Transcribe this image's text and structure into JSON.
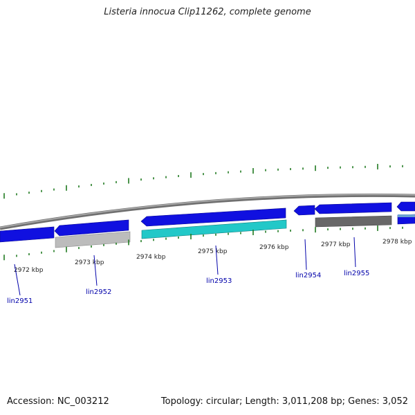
{
  "title": "Listeria innocua Clip11262, complete genome",
  "footer": {
    "accession": "Accession: NC_003212",
    "summary": "Topology: circular; Length: 3,011,208 bp; Genes: 3,052"
  },
  "colors": {
    "backbone": "#8a8a8a",
    "gene_blue": "#1010e0",
    "gene_cyan": "#20c8c8",
    "gene_lightgray": "#b4b4b4",
    "gene_darkgray": "#6a6a6a",
    "tick": "#1f7a1f",
    "label": "#0000aa"
  },
  "kbp_labels": [
    "2972 kbp",
    "2973 kbp",
    "2974 kbp",
    "2975 kbp",
    "2976 kbp",
    "2977 kbp",
    "2978 kbp"
  ],
  "loci": [
    "lin2951",
    "lin2952",
    "lin2953",
    "lin2954",
    "lin2955"
  ]
}
